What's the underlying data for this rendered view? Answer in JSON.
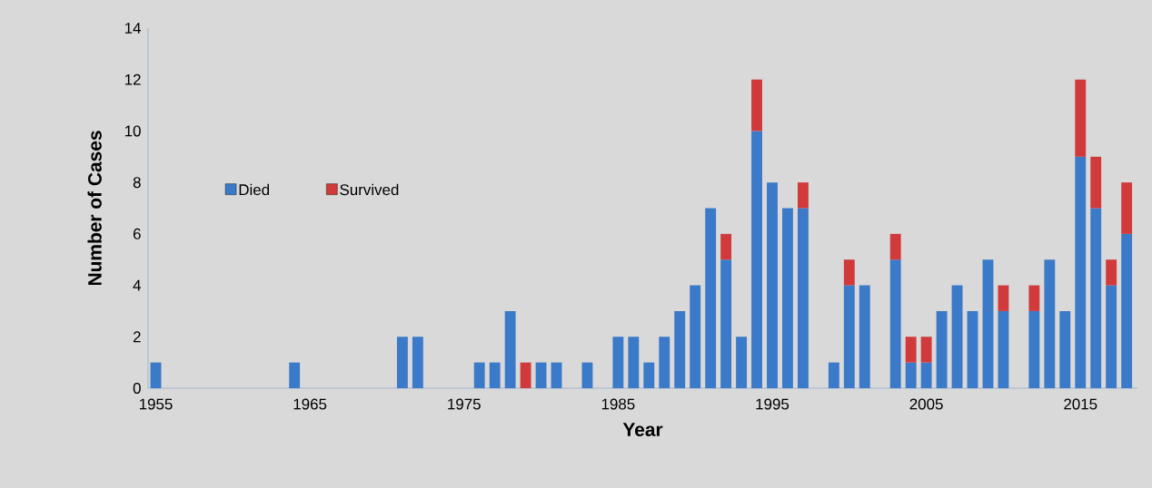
{
  "chart_data": {
    "type": "bar",
    "stacked": true,
    "xlabel": "Year",
    "ylabel": "Number of Cases",
    "x": [
      1955,
      1964,
      1971,
      1972,
      1976,
      1977,
      1978,
      1979,
      1980,
      1981,
      1983,
      1985,
      1986,
      1987,
      1988,
      1989,
      1990,
      1991,
      1992,
      1993,
      1994,
      1995,
      1996,
      1997,
      1999,
      2000,
      2001,
      2003,
      2004,
      2005,
      2006,
      2007,
      2008,
      2009,
      2010,
      2012,
      2013,
      2014,
      2015,
      2016,
      2017,
      2018
    ],
    "series": [
      {
        "name": "Died",
        "color": "#3b79c9",
        "values": [
          1,
          1,
          2,
          2,
          1,
          1,
          3,
          null,
          1,
          1,
          1,
          2,
          2,
          1,
          2,
          3,
          4,
          7,
          5,
          2,
          10,
          8,
          7,
          7,
          1,
          4,
          4,
          5,
          1,
          1,
          3,
          4,
          3,
          5,
          3,
          3,
          5,
          3,
          9,
          7,
          4,
          6
        ]
      },
      {
        "name": "Survived",
        "color": "#d03a3a",
        "values": [
          null,
          null,
          null,
          null,
          null,
          null,
          null,
          1,
          null,
          null,
          null,
          null,
          null,
          null,
          null,
          null,
          null,
          null,
          1,
          null,
          2,
          null,
          null,
          1,
          null,
          1,
          null,
          1,
          1,
          1,
          null,
          null,
          null,
          null,
          1,
          1,
          null,
          null,
          3,
          2,
          1,
          2
        ]
      }
    ],
    "xlim": [
      1954.5,
      2018.7
    ],
    "xticks": [
      1955,
      1965,
      1975,
      1985,
      1995,
      2005,
      2015
    ],
    "ylim": [
      0,
      14
    ],
    "yticks": [
      0,
      2,
      4,
      6,
      8,
      10,
      12,
      14
    ],
    "legend": "left",
    "grid": false
  }
}
